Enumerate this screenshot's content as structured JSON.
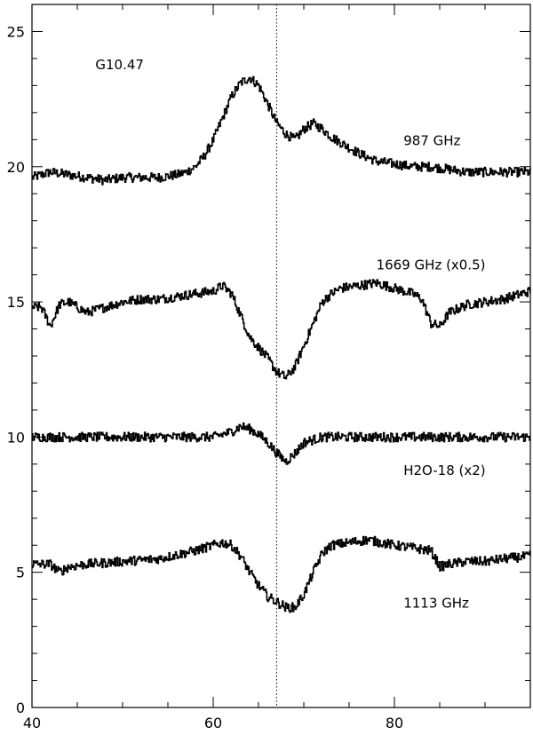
{
  "chart_data": {
    "type": "line",
    "title": "",
    "xlabel": "",
    "ylabel": "",
    "xlim": [
      40,
      95
    ],
    "ylim": [
      0,
      26
    ],
    "x_ticks": [
      40,
      60,
      80
    ],
    "y_ticks": [
      0,
      5,
      10,
      15,
      20,
      25
    ],
    "x_tick_labels": [
      "40",
      "60",
      "80"
    ],
    "y_tick_labels": [
      "0",
      "5",
      "10",
      "15",
      "20",
      "25"
    ],
    "x_minor_step": 5,
    "y_minor_step": 1,
    "grid": false,
    "annotations": [
      {
        "text": "G10.47",
        "x": 47,
        "y": 23.6
      },
      {
        "text": "987 GHz",
        "x": 81,
        "y": 20.8
      },
      {
        "text": "1669 GHz (x0.5)",
        "x": 78,
        "y": 16.2
      },
      {
        "text": "H2O-18 (x2)",
        "x": 81,
        "y": 8.6
      },
      {
        "text": "1113 GHz",
        "x": 81,
        "y": 3.7
      }
    ],
    "reference_line": {
      "x": 67,
      "style": "dotted"
    },
    "series": [
      {
        "x": [
          40,
          42,
          44,
          46,
          48,
          50,
          52,
          54,
          56,
          57,
          58,
          59,
          60,
          61,
          62,
          63,
          64,
          65,
          66,
          67,
          68,
          69,
          70,
          71,
          72,
          73,
          74,
          75,
          76,
          78,
          80,
          82,
          84,
          86,
          88,
          90,
          92,
          95
        ],
        "values": [
          19.6,
          19.8,
          19.7,
          19.6,
          19.5,
          19.6,
          19.6,
          19.6,
          19.7,
          19.8,
          20.0,
          20.4,
          21.0,
          21.8,
          22.6,
          23.1,
          23.3,
          23.0,
          22.3,
          21.6,
          21.2,
          21.0,
          21.4,
          21.6,
          21.4,
          21.1,
          20.9,
          20.7,
          20.5,
          20.2,
          20.1,
          20.0,
          20.0,
          19.9,
          19.8,
          19.8,
          19.8,
          19.8
        ]
      },
      {
        "x": [
          40,
          41,
          42,
          43,
          44,
          46,
          48,
          50,
          52,
          54,
          56,
          58,
          60,
          61,
          62,
          63,
          64,
          65,
          66,
          67,
          68,
          69,
          70,
          71,
          72,
          73,
          74,
          76,
          78,
          80,
          82,
          83,
          84,
          85,
          86,
          88,
          90,
          92,
          95
        ],
        "values": [
          14.8,
          14.8,
          14.1,
          14.9,
          15.0,
          14.6,
          14.8,
          15.0,
          15.1,
          15.1,
          15.2,
          15.3,
          15.4,
          15.6,
          15.3,
          14.5,
          13.7,
          13.3,
          12.9,
          12.4,
          12.2,
          12.6,
          13.4,
          14.2,
          15.0,
          15.3,
          15.5,
          15.6,
          15.7,
          15.5,
          15.3,
          15.1,
          14.2,
          14.1,
          14.6,
          14.9,
          15.0,
          15.1,
          15.4
        ]
      },
      {
        "x": [
          40,
          44,
          48,
          52,
          56,
          60,
          62,
          63,
          64,
          65,
          66,
          67,
          68,
          69,
          70,
          72,
          76,
          80,
          84,
          88,
          92,
          95
        ],
        "values": [
          10.0,
          10.0,
          10.0,
          10.0,
          10.0,
          10.0,
          10.2,
          10.4,
          10.3,
          10.1,
          9.8,
          9.4,
          9.1,
          9.4,
          9.8,
          10.0,
          10.0,
          10.0,
          10.0,
          10.0,
          10.0,
          10.0
        ]
      },
      {
        "x": [
          40,
          42,
          43,
          44,
          46,
          50,
          54,
          58,
          60,
          61,
          62,
          63,
          64,
          65,
          66,
          67,
          68,
          69,
          70,
          71,
          72,
          73,
          75,
          77,
          80,
          82,
          84,
          85,
          86,
          88,
          90,
          92,
          95
        ],
        "values": [
          5.3,
          5.3,
          5.0,
          5.2,
          5.3,
          5.4,
          5.5,
          5.8,
          6.0,
          6.1,
          6.0,
          5.6,
          5.0,
          4.5,
          4.1,
          3.9,
          3.7,
          3.7,
          4.2,
          5.0,
          5.7,
          6.0,
          6.1,
          6.2,
          6.0,
          5.9,
          5.8,
          5.2,
          5.3,
          5.4,
          5.4,
          5.5,
          5.6
        ]
      }
    ]
  }
}
